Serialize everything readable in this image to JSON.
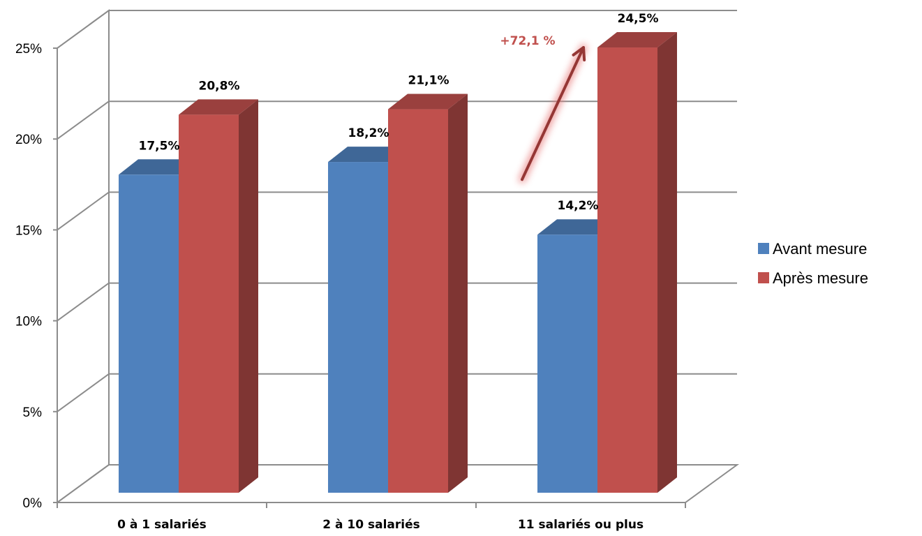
{
  "chart_data": {
    "type": "bar",
    "categories": [
      "0 à 1 salariés",
      "2 à 10 salariés",
      "11 salariés ou plus"
    ],
    "series": [
      {
        "name": "Avant mesure",
        "values": [
          17.5,
          18.2,
          14.2
        ],
        "labels": [
          "17,5%",
          "18,2%",
          "14,2%"
        ],
        "color": "#4F81BD"
      },
      {
        "name": "Après mesure",
        "values": [
          20.8,
          21.1,
          24.5
        ],
        "labels": [
          "20,8%",
          "21,1%",
          "24,5%"
        ],
        "color": "#C0504D"
      }
    ],
    "y_ticks": [
      0,
      5,
      10,
      15,
      20,
      25
    ],
    "y_tick_labels": [
      "0%",
      "5%",
      "10%",
      "15%",
      "20%",
      "25%"
    ],
    "ylim": [
      0,
      25
    ],
    "grid": true,
    "legend_position": "right",
    "three_d": true,
    "annotation": {
      "text": "+72,1 %",
      "color": "#C0504D",
      "arrow_color": "#953735"
    }
  }
}
